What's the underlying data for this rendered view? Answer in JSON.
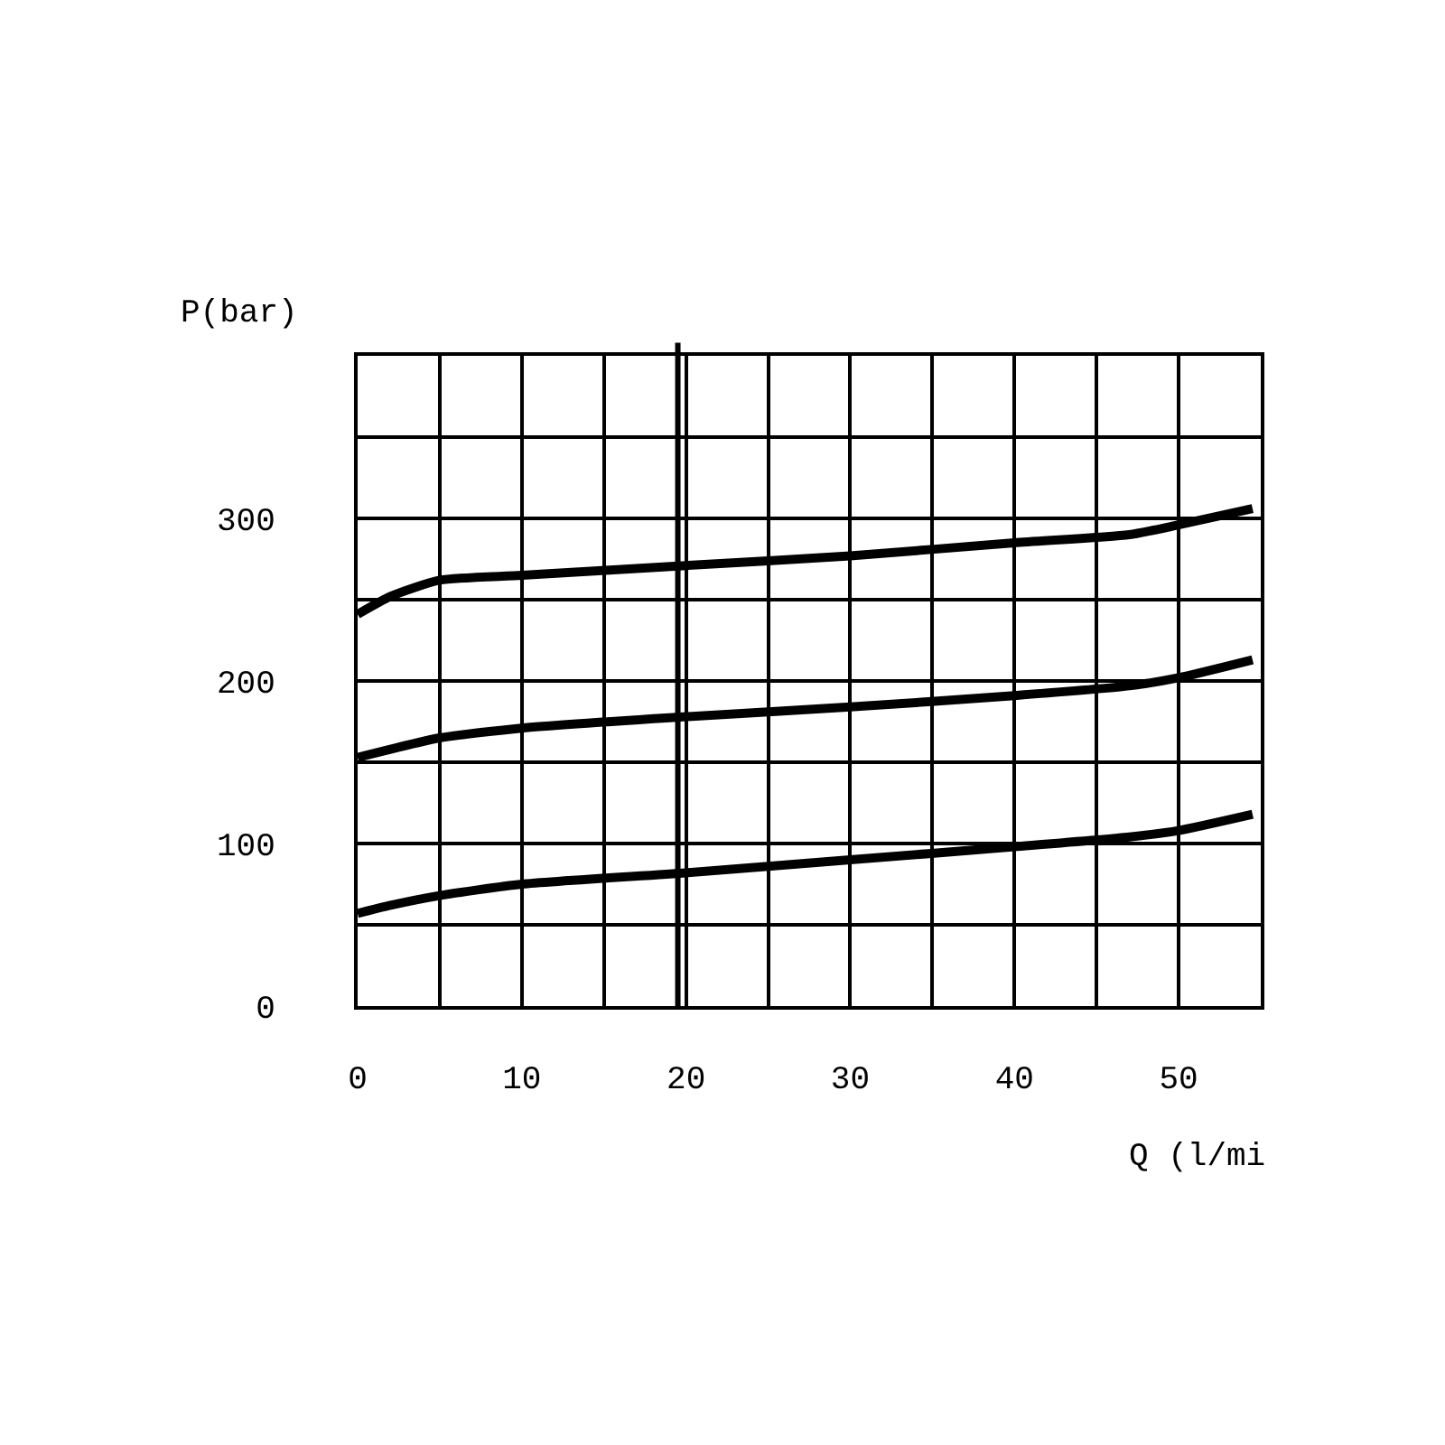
{
  "chart_data": {
    "type": "line",
    "xlabel": "Q (l/mi",
    "ylabel": "P(bar)",
    "xlim": [
      0,
      55
    ],
    "ylim": [
      0,
      400
    ],
    "xticks": [
      0,
      {
        "value": 5,
        "label": null
      },
      10,
      {
        "value": 15,
        "label": null
      },
      20,
      {
        "value": 25,
        "label": null
      },
      30,
      {
        "value": 35,
        "label": null
      },
      40,
      {
        "value": 45,
        "label": null
      },
      50
    ],
    "yticks": [
      0,
      {
        "value": 50,
        "label": null
      },
      100,
      {
        "value": 150,
        "label": null
      },
      200,
      {
        "value": 250,
        "label": null
      },
      300,
      {
        "value": 350,
        "label": null
      }
    ],
    "grid": true,
    "legend": false,
    "marker": "none",
    "line_style": "solid",
    "ref_lines": [
      {
        "axis": "x",
        "value": 19.5,
        "color": "#000000"
      }
    ],
    "series": [
      {
        "color": "#000000",
        "x": [
          0,
          2,
          5,
          10,
          20,
          30,
          40,
          47,
          50,
          54.5
        ],
        "values": [
          241,
          252,
          262,
          265,
          271,
          277,
          285,
          290,
          296,
          306
        ]
      },
      {
        "color": "#000000",
        "x": [
          0,
          2,
          5,
          10,
          20,
          30,
          40,
          47,
          50,
          54.5
        ],
        "values": [
          153,
          158,
          165,
          171,
          178,
          184,
          191,
          197,
          202,
          213
        ]
      },
      {
        "color": "#000000",
        "x": [
          0,
          2,
          5,
          10,
          20,
          30,
          40,
          47,
          50,
          54.5
        ],
        "values": [
          57,
          62,
          68,
          75,
          82,
          90,
          98,
          104,
          108,
          118
        ]
      }
    ]
  }
}
